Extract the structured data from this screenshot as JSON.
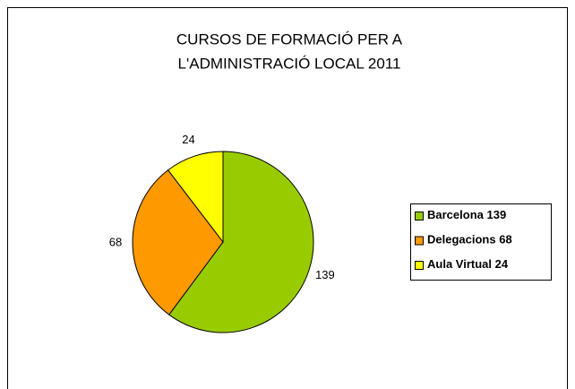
{
  "chart_data": {
    "type": "pie",
    "title": [
      "CURSOS DE FORMACIÓ PER A",
      "L'ADMINISTRACIÓ LOCAL 2011"
    ],
    "categories": [
      "Barcelona",
      "Delegacions",
      "Aula Virtual"
    ],
    "values": [
      139,
      68,
      24
    ],
    "colors": [
      "#99cc00",
      "#ff9900",
      "#ffff00"
    ],
    "legend": "right"
  }
}
